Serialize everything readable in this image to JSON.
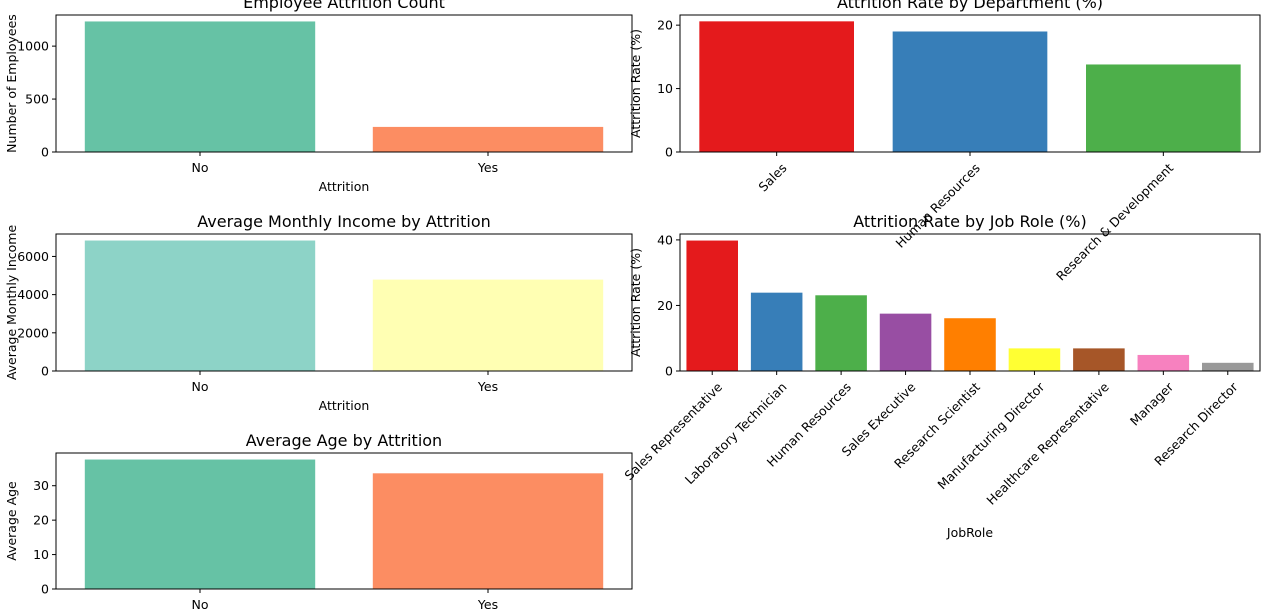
{
  "chart_data": [
    {
      "type": "bar",
      "title": "Employee Attrition Count",
      "xlabel": "Attrition",
      "ylabel": "Number of Employees",
      "categories": [
        "No",
        "Yes"
      ],
      "values": [
        1233,
        237
      ],
      "ylim": [
        0,
        1294
      ],
      "yticks": [
        0,
        500,
        1000
      ],
      "colors": [
        "#66c2a5",
        "#fc8d62"
      ],
      "grid": false
    },
    {
      "type": "bar",
      "title": "Attrition Rate by Department (%)",
      "xlabel": "",
      "ylabel": "Attrition Rate (%)",
      "categories": [
        "Sales",
        "Human Resources",
        "Research & Development"
      ],
      "values": [
        20.6,
        19.0,
        13.8
      ],
      "ylim": [
        0,
        21.6
      ],
      "yticks": [
        0,
        10,
        20
      ],
      "colors": [
        "#e41a1c",
        "#377eb8",
        "#4daf4a"
      ],
      "grid": false
    },
    {
      "type": "bar",
      "title": "Average Monthly Income by Attrition",
      "xlabel": "Attrition",
      "ylabel": "Average Monthly Income",
      "categories": [
        "No",
        "Yes"
      ],
      "values": [
        6833,
        4787
      ],
      "ylim": [
        0,
        7175
      ],
      "yticks": [
        0,
        2000,
        4000,
        6000
      ],
      "colors": [
        "#8dd3c7",
        "#ffffb3"
      ],
      "grid": false
    },
    {
      "type": "bar",
      "title": "Attrition Rate by Job Role (%)",
      "xlabel": "JobRole",
      "ylabel": "Attrition Rate (%)",
      "categories": [
        "Sales Representative",
        "Laboratory Technician",
        "Human Resources",
        "Sales Executive",
        "Research Scientist",
        "Manufacturing Director",
        "Healthcare Representative",
        "Manager",
        "Research Director"
      ],
      "values": [
        39.8,
        23.9,
        23.1,
        17.5,
        16.1,
        6.9,
        6.9,
        4.9,
        2.5
      ],
      "ylim": [
        0,
        41.8
      ],
      "yticks": [
        0,
        20,
        40
      ],
      "colors": [
        "#e41a1c",
        "#377eb8",
        "#4daf4a",
        "#984ea3",
        "#ff7f00",
        "#ffff33",
        "#a65628",
        "#f781bf",
        "#999999"
      ],
      "grid": false
    },
    {
      "type": "bar",
      "title": "Average Age by Attrition",
      "xlabel": "",
      "ylabel": "Average Age",
      "categories": [
        "No",
        "Yes"
      ],
      "values": [
        37.6,
        33.6
      ],
      "ylim": [
        0,
        39.5
      ],
      "yticks": [
        0,
        10,
        20,
        30
      ],
      "colors": [
        "#66c2a5",
        "#fc8d62"
      ],
      "grid": false
    }
  ]
}
